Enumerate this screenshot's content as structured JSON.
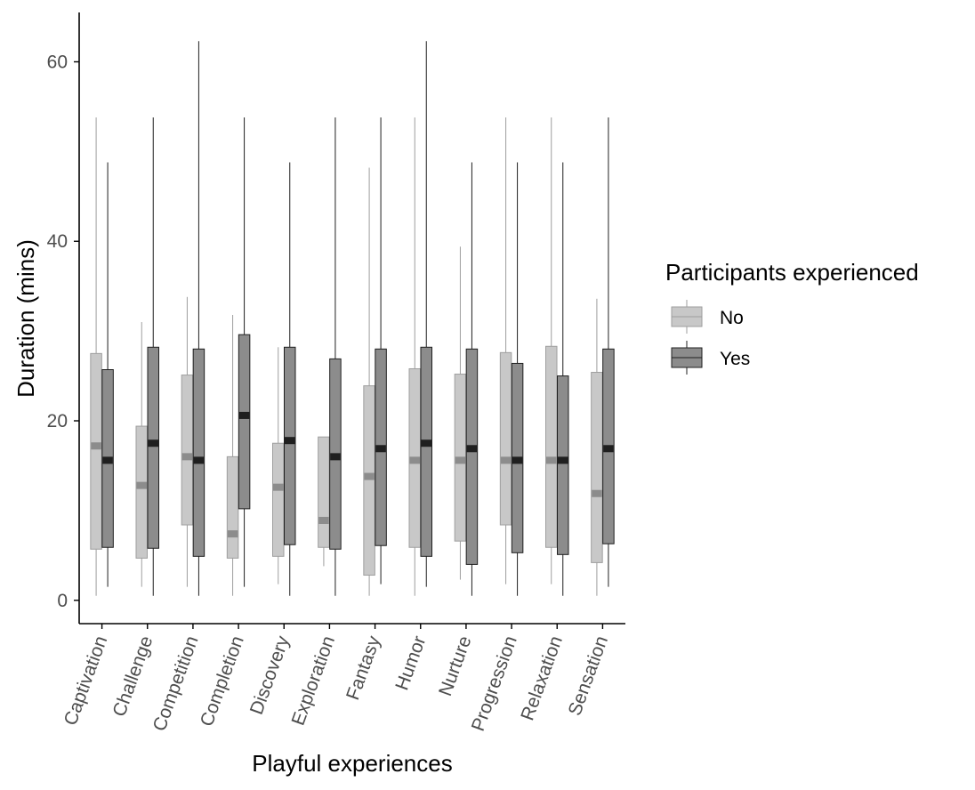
{
  "chart_data": {
    "type": "boxplot",
    "xlabel": "Playful experiences",
    "ylabel": "Duration (mins)",
    "ylim": [
      -2.6,
      65.5
    ],
    "yticks": [
      0,
      20,
      40,
      60
    ],
    "categories": [
      "Captivation",
      "Challenge",
      "Competition",
      "Completion",
      "Discovery",
      "Exploration",
      "Fantasy",
      "Humor",
      "Nurture",
      "Progression",
      "Relaxation",
      "Sensation"
    ],
    "legend": {
      "title": "Participants experienced",
      "position": "right"
    },
    "series": [
      {
        "name": "No",
        "fill": "#c8c8c8",
        "line": "#9e9e9e",
        "median_color": "#8c8c8c",
        "boxes": [
          {
            "min": 0.5,
            "q1": 5.7,
            "median": 17.2,
            "q3": 27.5,
            "max": 53.8
          },
          {
            "min": 1.5,
            "q1": 4.7,
            "median": 12.8,
            "q3": 19.4,
            "max": 31.0
          },
          {
            "min": 1.5,
            "q1": 8.4,
            "median": 16.0,
            "q3": 25.1,
            "max": 33.8
          },
          {
            "min": 0.5,
            "q1": 4.7,
            "median": 7.4,
            "q3": 16.0,
            "max": 31.8
          },
          {
            "min": 1.8,
            "q1": 4.9,
            "median": 12.6,
            "q3": 17.5,
            "max": 28.2
          },
          {
            "min": 3.8,
            "q1": 5.9,
            "median": 8.9,
            "q3": 18.2,
            "max": 18.2
          },
          {
            "min": 0.5,
            "q1": 2.8,
            "median": 13.8,
            "q3": 23.9,
            "max": 48.2
          },
          {
            "min": 0.5,
            "q1": 5.9,
            "median": 15.6,
            "q3": 25.8,
            "max": 53.8
          },
          {
            "min": 2.3,
            "q1": 6.6,
            "median": 15.6,
            "q3": 25.2,
            "max": 39.4
          },
          {
            "min": 1.8,
            "q1": 8.4,
            "median": 15.6,
            "q3": 27.6,
            "max": 53.8
          },
          {
            "min": 1.8,
            "q1": 5.9,
            "median": 15.6,
            "q3": 28.3,
            "max": 53.8
          },
          {
            "min": 0.5,
            "q1": 4.2,
            "median": 11.9,
            "q3": 25.4,
            "max": 33.6
          }
        ]
      },
      {
        "name": "Yes",
        "fill": "#8c8c8c",
        "line": "#1f1f1f",
        "median_color": "#1f1f1f",
        "boxes": [
          {
            "min": 1.5,
            "q1": 5.9,
            "median": 15.6,
            "q3": 25.7,
            "max": 48.8
          },
          {
            "min": 0.5,
            "q1": 5.8,
            "median": 17.5,
            "q3": 28.2,
            "max": 53.8
          },
          {
            "min": 0.5,
            "q1": 4.9,
            "median": 15.6,
            "q3": 28.0,
            "max": 62.3
          },
          {
            "min": 1.5,
            "q1": 10.2,
            "median": 20.6,
            "q3": 29.6,
            "max": 53.8
          },
          {
            "min": 0.5,
            "q1": 6.2,
            "median": 17.8,
            "q3": 28.2,
            "max": 48.8
          },
          {
            "min": 0.5,
            "q1": 5.7,
            "median": 16.0,
            "q3": 26.9,
            "max": 53.8
          },
          {
            "min": 1.8,
            "q1": 6.1,
            "median": 16.9,
            "q3": 28.0,
            "max": 53.8
          },
          {
            "min": 1.5,
            "q1": 4.9,
            "median": 17.5,
            "q3": 28.2,
            "max": 62.3
          },
          {
            "min": 0.5,
            "q1": 4.0,
            "median": 16.9,
            "q3": 28.0,
            "max": 48.8
          },
          {
            "min": 0.5,
            "q1": 5.3,
            "median": 15.6,
            "q3": 26.4,
            "max": 48.8
          },
          {
            "min": 0.5,
            "q1": 5.1,
            "median": 15.6,
            "q3": 25.0,
            "max": 48.8
          },
          {
            "min": 1.5,
            "q1": 6.3,
            "median": 16.9,
            "q3": 28.0,
            "max": 53.8
          }
        ]
      }
    ],
    "grid": false
  }
}
